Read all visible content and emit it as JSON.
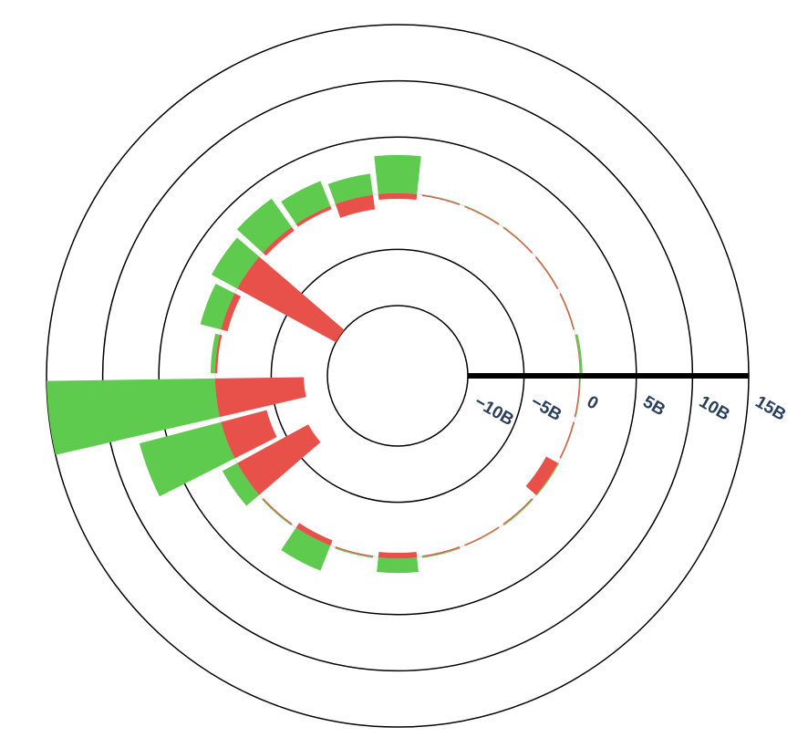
{
  "chart_data": {
    "type": "barpolar",
    "categories": [
      null,
      null,
      null,
      null,
      null,
      null,
      null,
      null,
      null,
      null,
      null,
      null,
      null,
      null,
      null,
      null,
      null,
      null,
      null,
      null,
      null,
      null,
      null,
      null,
      null,
      null
    ],
    "series": [
      {
        "color": "#5ecb4e",
        "values": [
          3400000000.0,
          1900000000.0,
          2400000000.0,
          3100000000.0,
          2600000000.0,
          1900000000.0,
          400000000.0,
          15000000000.0,
          7500000000.0,
          1500000000.0,
          100000000.0,
          2400000000.0,
          100000000.0,
          1300000000.0,
          100000000.0,
          50000000.0,
          100000000.0,
          100000000.0,
          50000000.0,
          50000000.0,
          200000000.0,
          50000000.0,
          50000000.0,
          50000000.0,
          50000000.0,
          50000000.0
        ]
      },
      {
        "color": "#e8504a",
        "values": [
          -500000000.0,
          -1300000000.0,
          -300000000.0,
          -400000000.0,
          -10000000000.0,
          -600000000.0,
          -200000000.0,
          -7900000000.0,
          -4200000000.0,
          -7200000000.0,
          -100000000.0,
          -500000000.0,
          -100000000.0,
          -500000000.0,
          -100000000.0,
          -100000000.0,
          -100000000.0,
          -1200000000.0,
          -100000000.0,
          -100000000.0,
          -50000000.0,
          -100000000.0,
          -100000000.0,
          -100000000.0,
          -100000000.0,
          -100000000.0
        ]
      }
    ],
    "ylim": [
      -10000000000.0,
      15000000000.0
    ],
    "yticks": [
      {
        "value": -10000000000.0,
        "label": "−10B"
      },
      {
        "value": -5000000000.0,
        "label": "−5B"
      },
      {
        "value": 0,
        "label": "0"
      },
      {
        "value": 5000000000.0,
        "label": "5B"
      },
      {
        "value": 10000000000.0,
        "label": "10B"
      },
      {
        "value": 15000000000.0,
        "label": "15B"
      }
    ],
    "grid": true
  }
}
